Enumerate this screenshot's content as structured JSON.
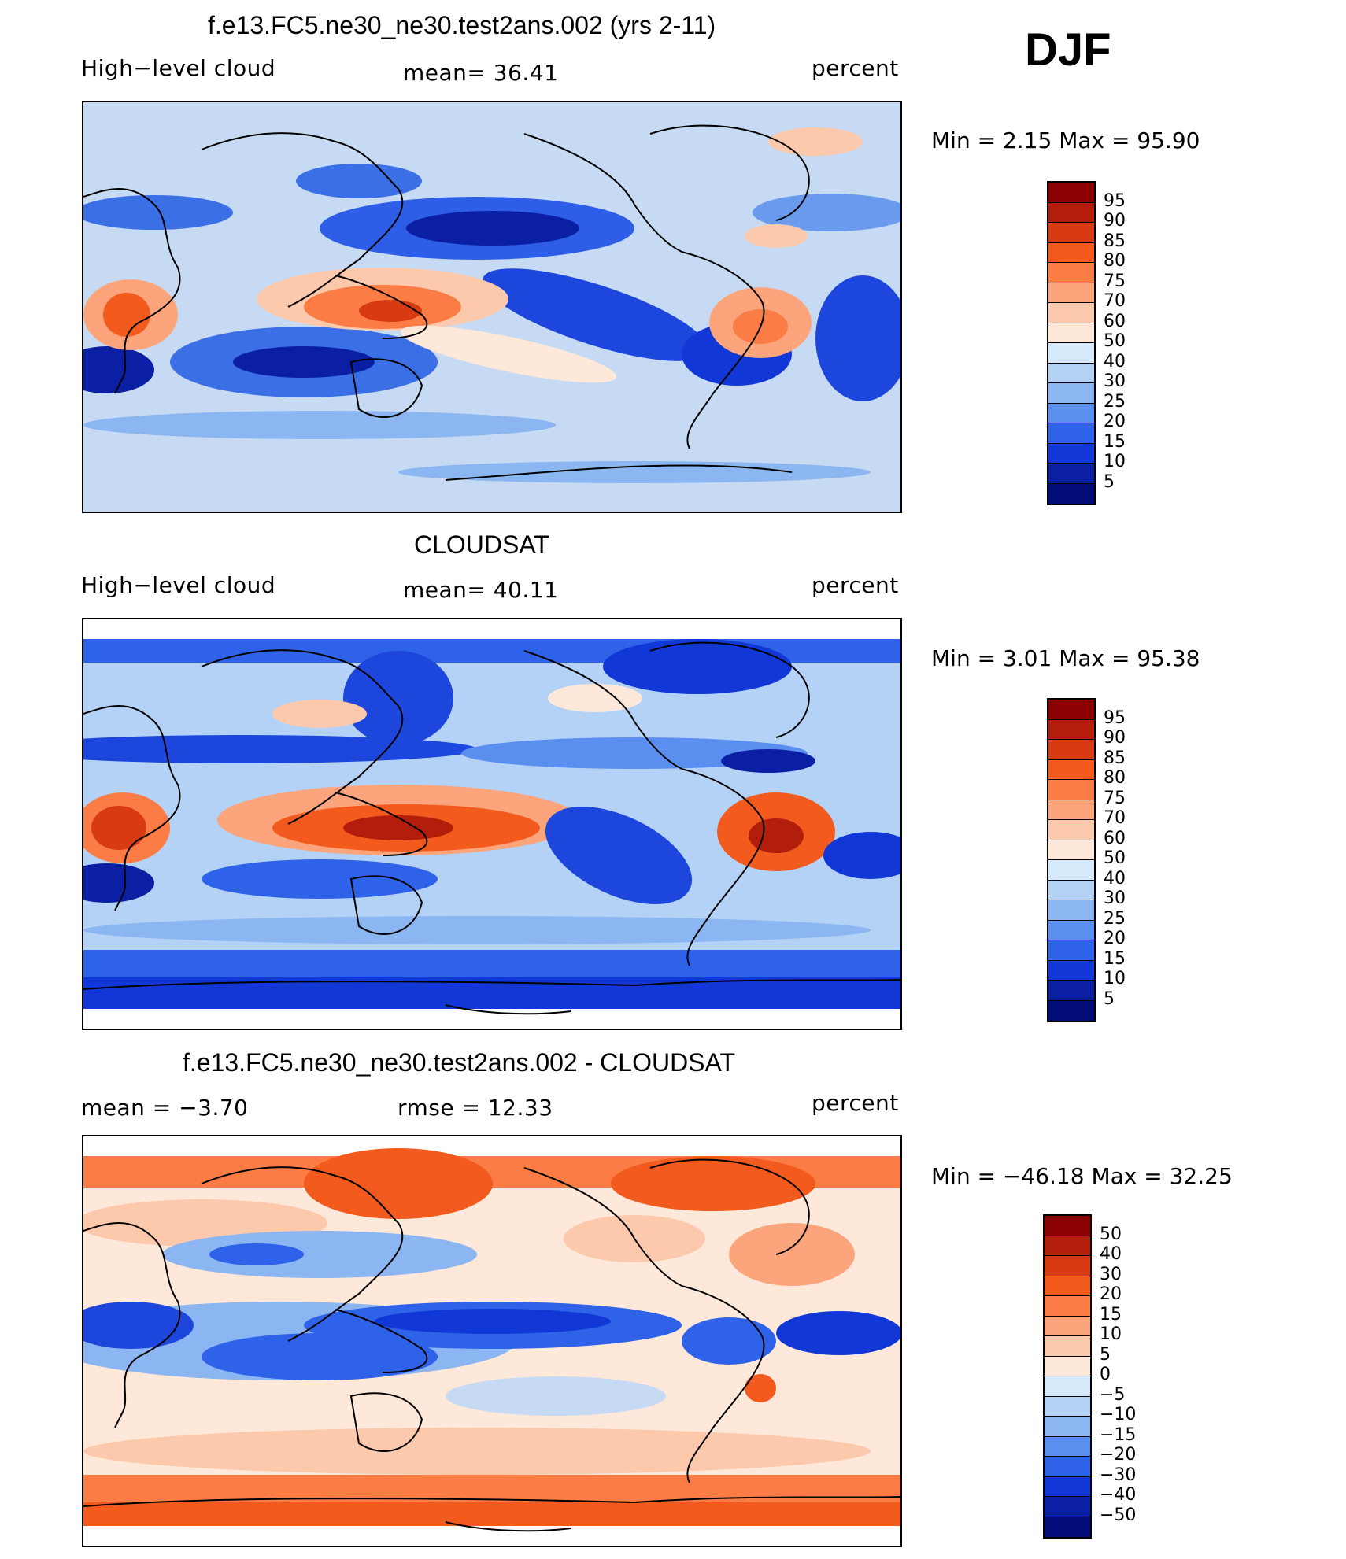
{
  "season": "DJF",
  "panels": [
    {
      "id": "model",
      "title": "f.e13.FC5.ne30_ne30.test2ans.002 (yrs 2-11)",
      "left_label": "High−level cloud",
      "mid_label": "mean=   36.41",
      "right_label": "percent",
      "minmax": "Min  =     2.15  Max  =    95.90",
      "colorbar_ticks": [
        "95",
        "90",
        "85",
        "80",
        "75",
        "70",
        "60",
        "50",
        "40",
        "30",
        "25",
        "20",
        "15",
        "10",
        "5"
      ],
      "colors": [
        "#8b0000",
        "#b31e0c",
        "#d83a12",
        "#f35a1e",
        "#fb7d45",
        "#fca57c",
        "#fdc9ad",
        "#fee8d9",
        "#d6e9fb",
        "#b4d2f6",
        "#8bb6f2",
        "#5a8ff0",
        "#2e62e9",
        "#1138d6",
        "#0a1fa3",
        "#020c79"
      ]
    },
    {
      "id": "obs",
      "title": "CLOUDSAT",
      "left_label": "High−level cloud",
      "mid_label": "mean=   40.11",
      "right_label": "percent",
      "minmax": "Min  =     3.01  Max  =    95.38",
      "colorbar_ticks": [
        "95",
        "90",
        "85",
        "80",
        "75",
        "70",
        "60",
        "50",
        "40",
        "30",
        "25",
        "20",
        "15",
        "10",
        "5"
      ],
      "colors": [
        "#8b0000",
        "#b31e0c",
        "#d83a12",
        "#f35a1e",
        "#fb7d45",
        "#fca57c",
        "#fdc9ad",
        "#fee8d9",
        "#d6e9fb",
        "#b4d2f6",
        "#8bb6f2",
        "#5a8ff0",
        "#2e62e9",
        "#1138d6",
        "#0a1fa3",
        "#020c79"
      ]
    },
    {
      "id": "diff",
      "title": "f.e13.FC5.ne30_ne30.test2ans.002 - CLOUDSAT",
      "left_label": "mean  =    −3.70",
      "mid_label": "rmse  =    12.33",
      "right_label": "percent",
      "minmax": "Min  =  −46.18  Max  =    32.25",
      "colorbar_ticks": [
        "50",
        "40",
        "30",
        "20",
        "15",
        "10",
        "5",
        "0",
        "−5",
        "−10",
        "−15",
        "−20",
        "−30",
        "−40",
        "−50"
      ],
      "colors": [
        "#8b0000",
        "#b31e0c",
        "#d83a12",
        "#f35a1e",
        "#fb7d45",
        "#fca57c",
        "#fdc9ad",
        "#fee8d9",
        "#d6e9fb",
        "#b4d2f6",
        "#8bb6f2",
        "#5a8ff0",
        "#2e62e9",
        "#1138d6",
        "#0a1fa3",
        "#020c79"
      ]
    }
  ]
}
